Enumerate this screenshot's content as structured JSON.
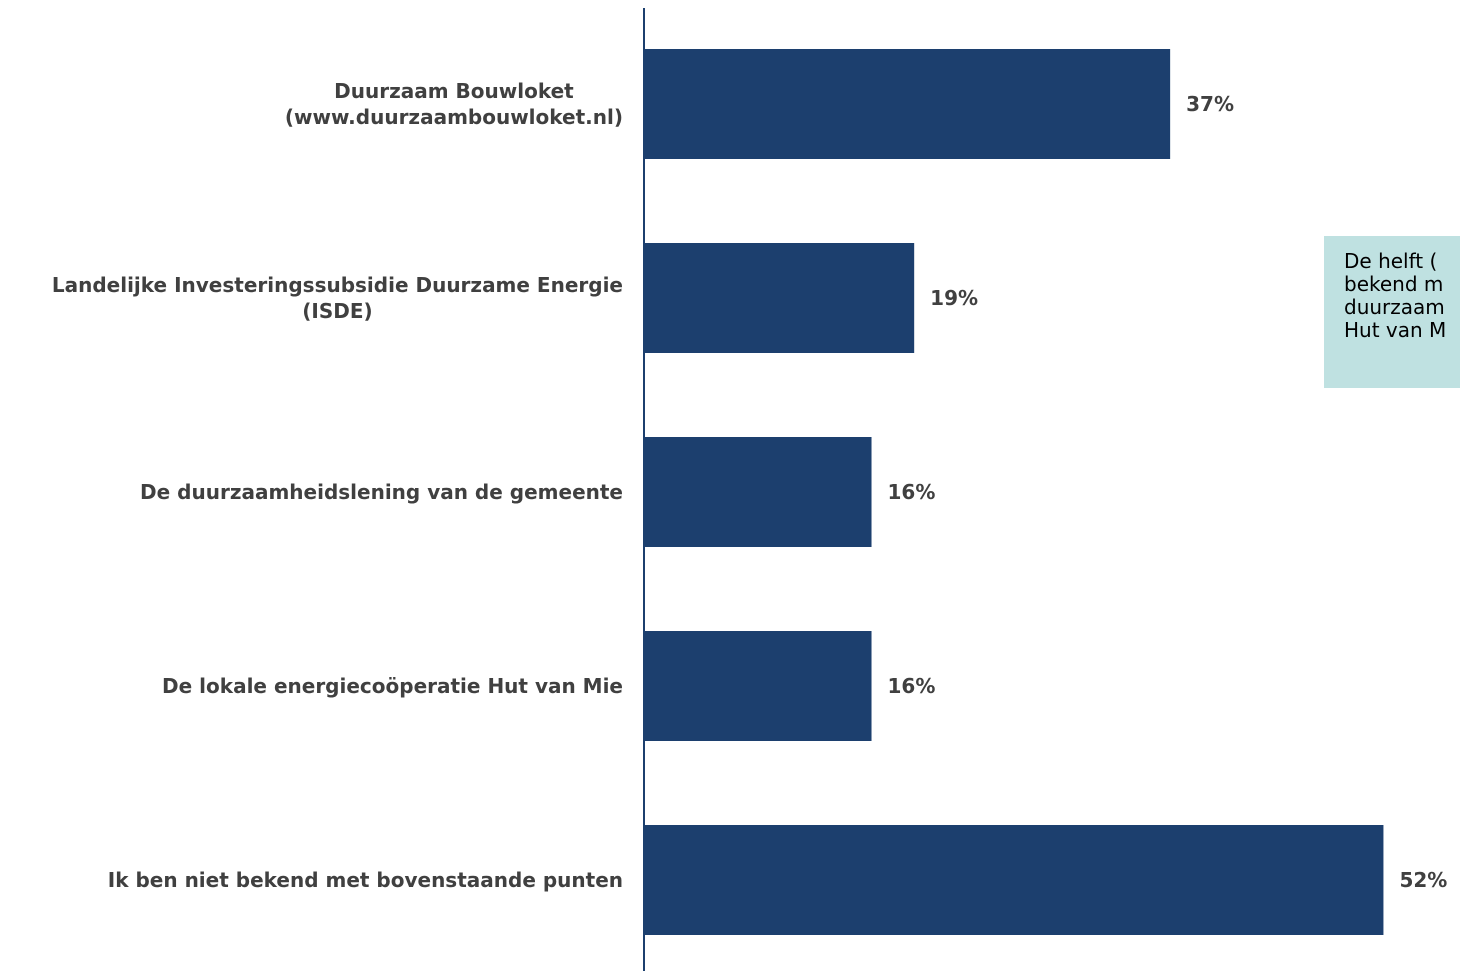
{
  "chart_data": {
    "type": "bar",
    "orientation": "horizontal",
    "categories": [
      [
        "Duurzaam Bouwloket",
        "(www.duurzaambouwloket.nl)"
      ],
      [
        "Landelijke Investeringssubsidie Duurzame Energie",
        "(ISDE)"
      ],
      [
        "De duurzaamheidslening van de gemeente"
      ],
      [
        "De lokale energiecoöperatie Hut van Mie"
      ],
      [
        "Ik ben niet bekend met bovenstaande punten"
      ]
    ],
    "values": [
      37,
      19,
      16,
      16,
      52
    ],
    "value_labels": [
      "37%",
      "19%",
      "16%",
      "16%",
      "52%"
    ],
    "unit": "%",
    "bar_color": "#1c3f6e",
    "axis_color": "#1c3f6e",
    "text_color": "#404040",
    "grid": false,
    "legend": "none"
  },
  "callout": {
    "text": "De helft (\nbekend m\nduurzaam\nHut van M",
    "background": "#bfe1e1"
  }
}
